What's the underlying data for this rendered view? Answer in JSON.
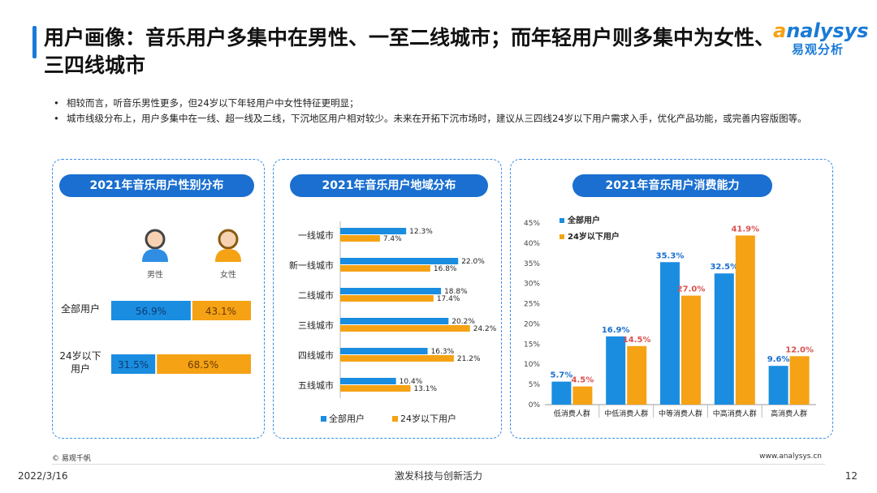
{
  "header": {
    "title": "用户画像：音乐用户多集中在男性、一至二线城市；而年轻用户则多集中为女性、三四线城市",
    "logo_en_a": "a",
    "logo_en_rest": "nalysys",
    "logo_cn": "易观分析"
  },
  "bullets": [
    "相较而言，听音乐男性更多，但24岁以下年轻用户中女性特征更明显；",
    "城市线级分布上，用户多集中在一线、超一线及二线，下沉地区用户相对较少。未来在开拓下沉市场时，建议从三四线24岁以下用户需求入手，优化产品功能，或完善内容版图等。"
  ],
  "colors": {
    "blue": "#1a8de0",
    "orange": "#f5a214",
    "title_blue": "#1a6fd0",
    "value_red": "#d9534f"
  },
  "chart_data": [
    {
      "type": "bar",
      "title": "2021年音乐用户性别分布",
      "stacked": true,
      "orientation": "horizontal",
      "categories": [
        "全部用户",
        "24岁以下用户"
      ],
      "series": [
        {
          "name": "男性",
          "values": [
            56.9,
            31.5
          ],
          "labels": [
            "56.9%",
            "31.5%"
          ]
        },
        {
          "name": "女性",
          "values": [
            43.1,
            68.5
          ],
          "labels": [
            "43.1%",
            "68.5%"
          ]
        }
      ]
    },
    {
      "type": "bar",
      "title": "2021年音乐用户地域分布",
      "orientation": "horizontal",
      "categories": [
        "一线城市",
        "新一线城市",
        "二线城市",
        "三线城市",
        "四线城市",
        "五线城市"
      ],
      "series": [
        {
          "name": "全部用户",
          "values": [
            12.3,
            22.0,
            18.8,
            20.2,
            16.3,
            10.4
          ],
          "labels": [
            "12.3%",
            "22.0%",
            "18.8%",
            "20.2%",
            "16.3%",
            "10.4%"
          ]
        },
        {
          "name": "24岁以下用户",
          "values": [
            7.4,
            16.8,
            17.4,
            24.2,
            21.2,
            13.1
          ],
          "labels": [
            "7.4%",
            "16.8%",
            "17.4%",
            "24.2%",
            "21.2%",
            "13.1%"
          ]
        }
      ],
      "legend": "bottom"
    },
    {
      "type": "bar",
      "title": "2021年音乐用户消费能力",
      "orientation": "vertical",
      "categories": [
        "低消费人群",
        "中低消费人群",
        "中等消费人群",
        "中高消费人群",
        "高消费人群"
      ],
      "series": [
        {
          "name": "全部用户",
          "values": [
            5.7,
            16.9,
            35.3,
            32.5,
            9.6
          ],
          "labels": [
            "5.7%",
            "16.9%",
            "35.3%",
            "32.5%",
            "9.6%"
          ]
        },
        {
          "name": "24岁以下用户",
          "values": [
            4.5,
            14.5,
            27.0,
            41.9,
            12.0
          ],
          "labels": [
            "4.5%",
            "14.5%",
            "27.0%",
            "41.9%",
            "12.0%"
          ]
        }
      ],
      "ylim": [
        0,
        45
      ],
      "yticks": [
        "0%",
        "5%",
        "10%",
        "15%",
        "20%",
        "25%",
        "30%",
        "35%",
        "40%",
        "45%"
      ],
      "legend": "top-left"
    }
  ],
  "footer": {
    "copyright": "© 易观千帆",
    "website": "www.analysys.cn",
    "date": "2022/3/16",
    "slogan": "激发科技与创新活力",
    "page": "12"
  }
}
